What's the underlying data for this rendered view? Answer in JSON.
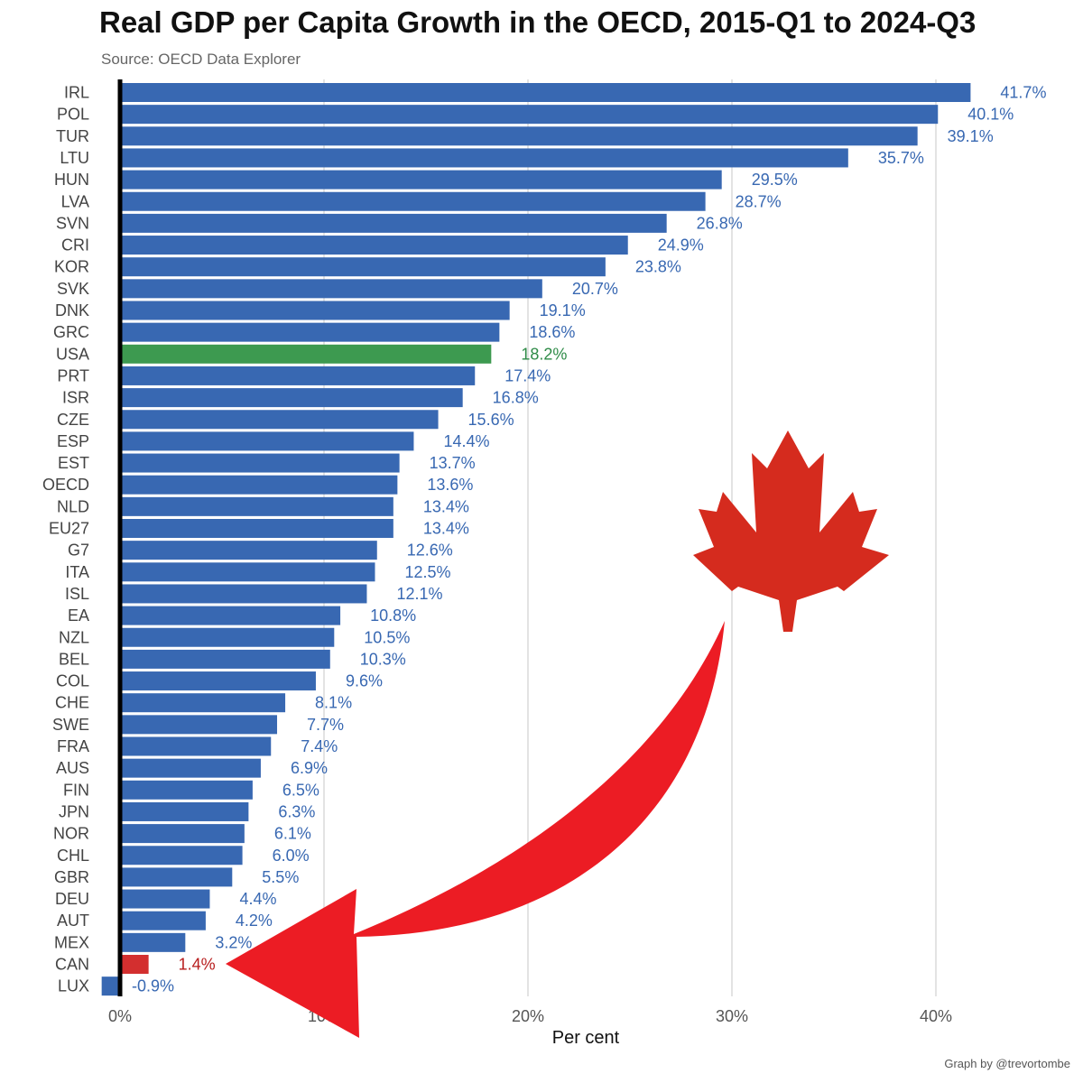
{
  "chart_data": {
    "type": "bar",
    "orientation": "horizontal",
    "title": "Real GDP per Capita Growth in the OECD, 2015-Q1 to 2024-Q3",
    "subtitle": "Source: OECD Data Explorer",
    "xlabel": "Per cent",
    "ylabel": "",
    "xlim": [
      0,
      45
    ],
    "x_ticks": [
      0,
      10,
      20,
      30,
      40
    ],
    "x_tick_labels": [
      "0%",
      "10%",
      "20%",
      "30%",
      "40%"
    ],
    "grid": "vertical",
    "credit": "Graph by @trevortombe",
    "categories": [
      "IRL",
      "POL",
      "TUR",
      "LTU",
      "HUN",
      "LVA",
      "SVN",
      "CRI",
      "KOR",
      "SVK",
      "DNK",
      "GRC",
      "USA",
      "PRT",
      "ISR",
      "CZE",
      "ESP",
      "EST",
      "OECD",
      "NLD",
      "EU27",
      "G7",
      "ITA",
      "ISL",
      "EA",
      "NZL",
      "BEL",
      "COL",
      "CHE",
      "SWE",
      "FRA",
      "AUS",
      "FIN",
      "JPN",
      "NOR",
      "CHL",
      "GBR",
      "DEU",
      "AUT",
      "MEX",
      "CAN",
      "LUX"
    ],
    "values": [
      41.7,
      40.1,
      39.1,
      35.7,
      29.5,
      28.7,
      26.8,
      24.9,
      23.8,
      20.7,
      19.1,
      18.6,
      18.2,
      17.4,
      16.8,
      15.6,
      14.4,
      13.7,
      13.6,
      13.4,
      13.4,
      12.6,
      12.5,
      12.1,
      10.8,
      10.5,
      10.3,
      9.6,
      8.1,
      7.7,
      7.4,
      6.9,
      6.5,
      6.3,
      6.1,
      6.0,
      5.5,
      4.4,
      4.2,
      3.2,
      1.4,
      -0.9
    ],
    "value_labels": [
      "41.7%",
      "40.1%",
      "39.1%",
      "35.7%",
      "29.5%",
      "28.7%",
      "26.8%",
      "24.9%",
      "23.8%",
      "20.7%",
      "19.1%",
      "18.6%",
      "18.2%",
      "17.4%",
      "16.8%",
      "15.6%",
      "14.4%",
      "13.7%",
      "13.6%",
      "13.4%",
      "13.4%",
      "12.6%",
      "12.5%",
      "12.1%",
      "10.8%",
      "10.5%",
      "10.3%",
      "9.6%",
      "8.1%",
      "7.7%",
      "7.4%",
      "6.9%",
      "6.5%",
      "6.3%",
      "6.1%",
      "6.0%",
      "5.5%",
      "4.4%",
      "4.2%",
      "3.2%",
      "1.4%",
      "-0.9%"
    ],
    "colors": {
      "default": "#3868b2",
      "highlight_usa": "#3d9a50",
      "highlight_can": "#d32f2f",
      "label_default": "#3868b2",
      "label_usa": "#2e8b47",
      "label_can": "#b71c1c",
      "arrow": "#ec1c24",
      "maple_leaf": "#d52b1e"
    },
    "highlights": {
      "USA": "highlight_usa",
      "CAN": "highlight_can"
    },
    "annotations": [
      "maple-leaf-icon",
      "curved-arrow-icon"
    ]
  }
}
